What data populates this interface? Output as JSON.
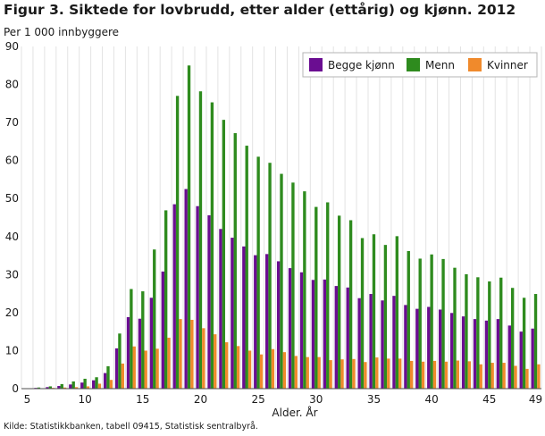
{
  "figure": {
    "title": "Figur 3. Siktede for lovbrudd, etter alder (ettårig) og kjønn. 2012",
    "y_unit_label": "Per 1 000 innbyggere",
    "source": "Kilde: Statistikkbanken, tabell 09415, Statistisk sentralbyrå."
  },
  "chart_data": {
    "type": "bar",
    "title": "Figur 3. Siktede for lovbrudd, etter alder (ettårig) og kjønn. 2012",
    "xlabel": "Alder. År",
    "ylabel": "Per 1 000 innbyggere",
    "ylim": [
      0,
      90
    ],
    "yticks": [
      0,
      10,
      20,
      30,
      40,
      50,
      60,
      70,
      80,
      90
    ],
    "xtick_labels": [
      "5",
      "10",
      "15",
      "20",
      "25",
      "30",
      "35",
      "40",
      "45",
      "49"
    ],
    "grid": "vertical",
    "legend_position": "top-right",
    "categories": [
      5,
      6,
      7,
      8,
      9,
      10,
      11,
      12,
      13,
      14,
      15,
      16,
      17,
      18,
      19,
      20,
      21,
      22,
      23,
      24,
      25,
      26,
      27,
      28,
      29,
      30,
      31,
      32,
      33,
      34,
      35,
      36,
      37,
      38,
      39,
      40,
      41,
      42,
      43,
      44,
      45,
      46,
      47,
      48,
      49
    ],
    "series": [
      {
        "name": "Begge kjønn",
        "color": "#6a0d91",
        "values": [
          0.1,
          0.2,
          0.4,
          0.7,
          1.1,
          1.6,
          2.2,
          4.1,
          10.6,
          18.8,
          18.4,
          23.9,
          30.8,
          48.5,
          52.5,
          48.0,
          45.6,
          42.0,
          39.7,
          37.4,
          35.1,
          35.4,
          33.5,
          31.7,
          30.6,
          28.6,
          28.7,
          27.0,
          26.6,
          23.8,
          24.9,
          23.2,
          24.4,
          22.0,
          21.0,
          21.5,
          20.8,
          19.9,
          19.0,
          18.3,
          17.9,
          18.3,
          16.6,
          15.0,
          15.8
        ]
      },
      {
        "name": "Menn",
        "color": "#2e8b1e",
        "values": [
          0.1,
          0.3,
          0.6,
          1.2,
          1.9,
          2.6,
          3.0,
          5.9,
          14.5,
          26.2,
          25.6,
          36.6,
          46.9,
          77.0,
          85.0,
          78.2,
          75.3,
          70.7,
          67.2,
          63.9,
          61.0,
          59.4,
          56.5,
          54.2,
          51.9,
          47.8,
          49.0,
          45.5,
          44.3,
          39.6,
          40.6,
          37.8,
          40.1,
          36.2,
          34.2,
          35.3,
          34.1,
          31.8,
          30.1,
          29.3,
          28.2,
          29.2,
          26.5,
          23.9,
          24.9
        ]
      },
      {
        "name": "Kvinner",
        "color": "#f08a2c",
        "values": [
          0.0,
          0.1,
          0.2,
          0.3,
          0.4,
          0.6,
          1.3,
          2.3,
          6.6,
          11.1,
          10.0,
          10.5,
          13.4,
          18.3,
          18.1,
          15.9,
          14.3,
          12.2,
          11.2,
          10.0,
          9.0,
          10.4,
          9.6,
          8.6,
          8.3,
          8.3,
          7.5,
          7.7,
          7.8,
          7.0,
          8.2,
          7.9,
          7.9,
          7.3,
          7.1,
          7.3,
          7.1,
          7.4,
          7.2,
          6.4,
          6.8,
          6.8,
          6.0,
          5.2,
          6.4
        ]
      }
    ]
  }
}
